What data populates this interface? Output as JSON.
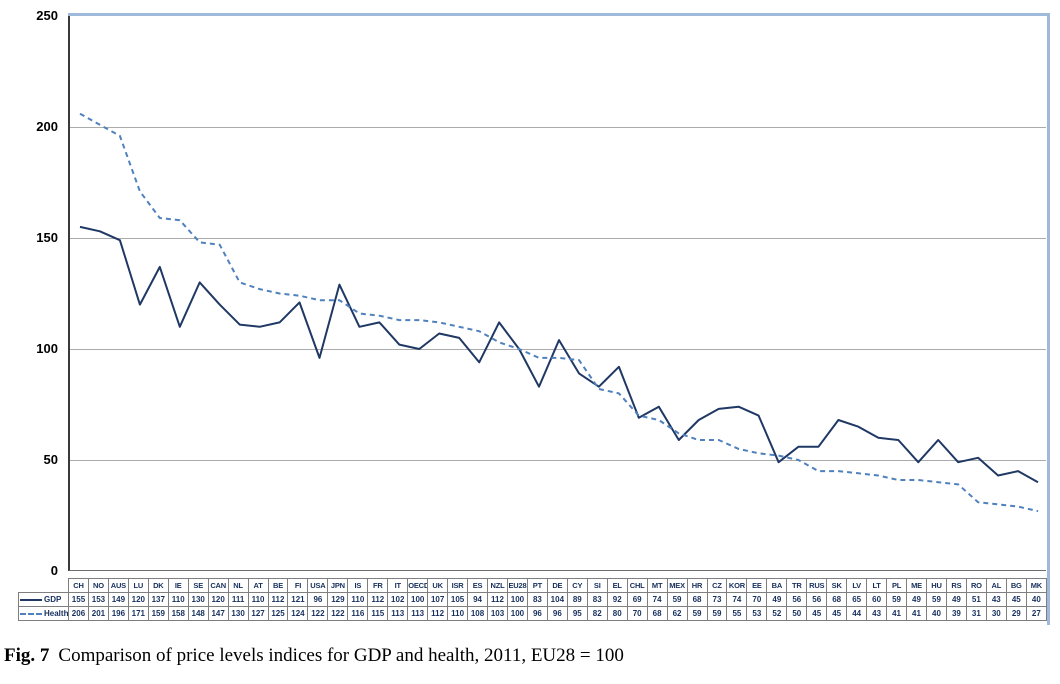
{
  "chart_data": {
    "type": "line",
    "categories": [
      "CH",
      "NO",
      "AUS",
      "LU",
      "DK",
      "IE",
      "SE",
      "CAN",
      "NL",
      "AT",
      "BE",
      "FI",
      "USA",
      "JPN",
      "IS",
      "FR",
      "IT",
      "OECD",
      "UK",
      "ISR",
      "ES",
      "NZL",
      "EU28",
      "PT",
      "DE",
      "CY",
      "SI",
      "EL",
      "CHL",
      "MT",
      "MEX",
      "HR",
      "CZ",
      "KOR",
      "EE",
      "BA",
      "TR",
      "RUS",
      "SK",
      "LV",
      "LT",
      "PL",
      "ME",
      "HU",
      "RS",
      "RO",
      "AL",
      "BG",
      "MK"
    ],
    "series": [
      {
        "name": "GDP",
        "style": "solid",
        "color": "#1f3864",
        "values": [
          155,
          153,
          149,
          120,
          137,
          110,
          130,
          120,
          111,
          110,
          112,
          121,
          96,
          129,
          110,
          112,
          102,
          100,
          107,
          105,
          94,
          112,
          100,
          83,
          104,
          89,
          83,
          92,
          69,
          74,
          59,
          68,
          73,
          74,
          70,
          49,
          56,
          56,
          68,
          65,
          60,
          59,
          49,
          59,
          49,
          51,
          43,
          45,
          40
        ]
      },
      {
        "name": "Health",
        "style": "dashed",
        "color": "#4f81bd",
        "values": [
          206,
          201,
          196,
          171,
          159,
          158,
          148,
          147,
          130,
          127,
          125,
          124,
          122,
          122,
          116,
          115,
          113,
          113,
          112,
          110,
          108,
          103,
          100,
          96,
          96,
          95,
          82,
          80,
          70,
          68,
          62,
          59,
          59,
          55,
          53,
          52,
          50,
          45,
          45,
          44,
          43,
          41,
          41,
          40,
          39,
          31,
          30,
          29,
          27
        ]
      }
    ],
    "title": "",
    "xlabel": "",
    "ylabel": "",
    "ylim": [
      0,
      250
    ],
    "yticks": [
      0,
      50,
      100,
      150,
      200,
      250
    ],
    "grid": true,
    "legend_position": "table-left"
  },
  "caption": {
    "label": "Fig. 7",
    "text": "Comparison of price levels indices for GDP and health, 2011, EU28 = 100"
  },
  "colors": {
    "gdp_line": "#1f3864",
    "health_line": "#4f81bd",
    "gridline": "#ababab",
    "axis": "#3a3a3a",
    "chart_frame": "#9fb9da",
    "table_border": "#7f7f7f",
    "table_text": "#17305e"
  }
}
